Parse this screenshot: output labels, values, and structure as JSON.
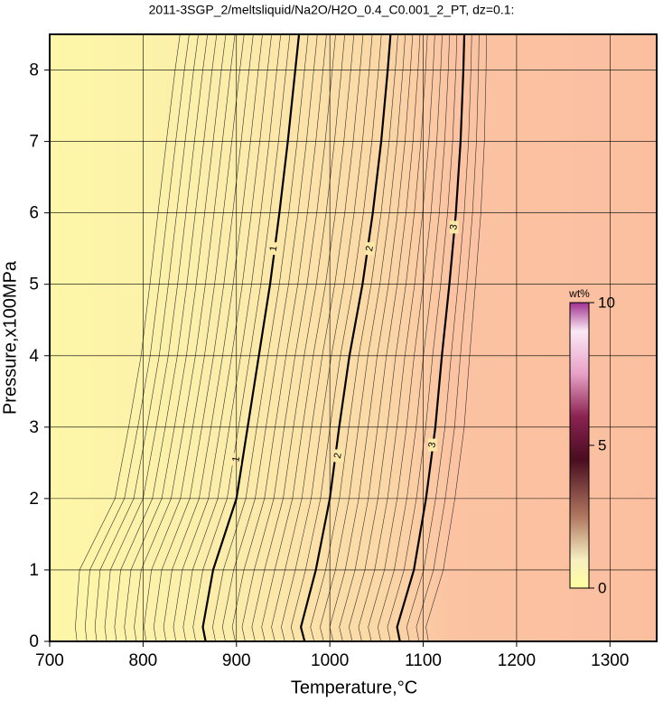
{
  "chart_data": {
    "type": "contour",
    "title": "2011-3SGP_2/meltsliquid/Na2O/H2O_0.4_C0.001_2_PT, dz=0.1:",
    "x_label": "Temperature,°C",
    "y_label": "Pressure,x100MPa",
    "xlim": [
      700,
      1350
    ],
    "ylim": [
      0,
      8.5
    ],
    "xticks": [
      700,
      800,
      900,
      1000,
      1100,
      1200,
      1300
    ],
    "yticks": [
      0,
      1,
      2,
      3,
      4,
      5,
      6,
      7,
      8
    ],
    "grid": true,
    "contours": [
      {
        "level": 1,
        "x": [
          867,
          864,
          875,
          900,
          912,
          924,
          936,
          946,
          955,
          963,
          967
        ],
        "y": [
          0,
          0.2,
          1,
          2,
          3,
          4,
          5,
          6,
          7,
          8,
          8.5
        ],
        "label_at": [
          [
            900,
            2.55
          ],
          [
            940,
            5.5
          ]
        ]
      },
      {
        "level": 2,
        "x": [
          973,
          969,
          985,
          1000,
          1010,
          1021,
          1035,
          1046,
          1055,
          1062,
          1065
        ],
        "y": [
          0,
          0.2,
          1,
          2,
          3,
          4,
          5,
          6,
          7,
          8,
          8.5
        ],
        "label_at": [
          [
            1009,
            2.6
          ],
          [
            1043,
            5.5
          ]
        ]
      },
      {
        "level": 3,
        "x": [
          1075,
          1072,
          1090,
          1103,
          1113,
          1120,
          1128,
          1135,
          1140,
          1143,
          1144
        ],
        "y": [
          0,
          0.2,
          1,
          2,
          3,
          4,
          5,
          6,
          7,
          8,
          8.5
        ],
        "label_at": [
          [
            1110,
            2.75
          ],
          [
            1133,
            5.8
          ]
        ]
      }
    ],
    "colorbar": {
      "label": "wt%",
      "lim": [
        0,
        10
      ],
      "ticks": [
        0,
        5,
        10
      ]
    }
  }
}
